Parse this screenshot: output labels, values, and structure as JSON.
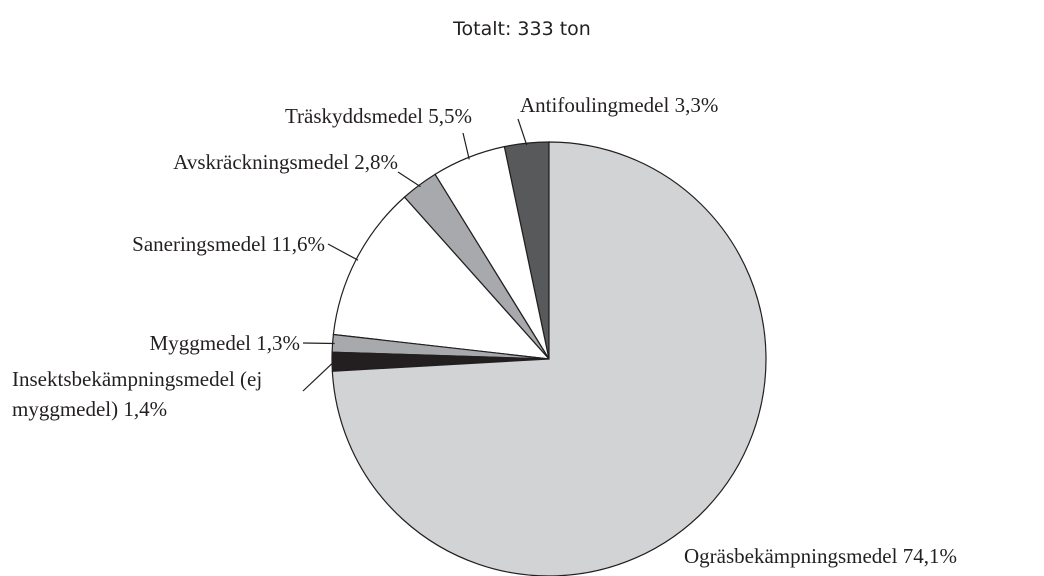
{
  "chart_data": {
    "type": "pie",
    "title": "Totalt: 333 ton",
    "categories": [
      "Antifoulingmedel",
      "Träskyddsmedel",
      "Avskräckningsmedel",
      "Saneringsmedel",
      "Myggmedel",
      "Insektsbekämpningsmedel (ej myggmedel)",
      "Ogräsbekämpningsmedel"
    ],
    "values": [
      3.3,
      5.5,
      2.8,
      11.6,
      1.3,
      1.4,
      74.1
    ],
    "value_labels": [
      "3,3%",
      "5,5%",
      "2,8%",
      "11,6%",
      "1,3%",
      "1,4%",
      "74,1%"
    ],
    "colors": [
      "#58595b",
      "#ffffff",
      "#a7a9ac",
      "#ffffff",
      "#a7a9ac",
      "#231f20",
      "#d1d3d4"
    ]
  }
}
